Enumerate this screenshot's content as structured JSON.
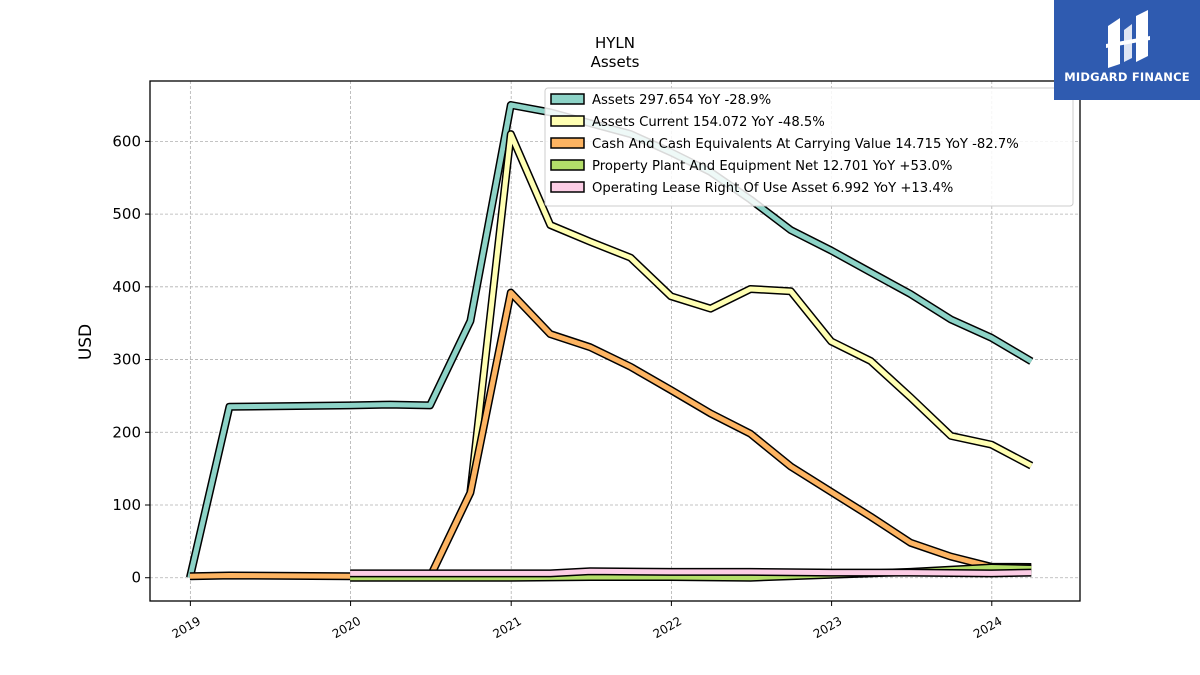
{
  "chart_data": {
    "type": "line",
    "title": "HYLN",
    "subtitle": "Assets",
    "ylabel": "USD",
    "xlabel": "",
    "xlim": [
      "2018-10-01",
      "2024-07-20"
    ],
    "ylim": [
      -32,
      683
    ],
    "x_ticks": [
      "2019",
      "2020",
      "2021",
      "2022",
      "2023",
      "2024"
    ],
    "y_ticks": [
      0,
      100,
      200,
      300,
      400,
      500,
      600
    ],
    "grid": true,
    "legend_position": "top-right",
    "series": [
      {
        "name": "Assets  297.654 YoY -28.9%",
        "color": "#8dd3c7",
        "points": [
          [
            "2018-12-31",
            0
          ],
          [
            "2019-03-31",
            235
          ],
          [
            "2019-12-31",
            237
          ],
          [
            "2020-03-31",
            238
          ],
          [
            "2020-06-30",
            237
          ],
          [
            "2020-09-30",
            353
          ],
          [
            "2020-12-31",
            650
          ],
          [
            "2021-03-31",
            640
          ],
          [
            "2021-06-30",
            625
          ],
          [
            "2021-09-30",
            610
          ],
          [
            "2021-12-31",
            585
          ],
          [
            "2022-03-31",
            558
          ],
          [
            "2022-06-30",
            520
          ],
          [
            "2022-09-30",
            478
          ],
          [
            "2022-12-31",
            450
          ],
          [
            "2023-03-31",
            420
          ],
          [
            "2023-06-30",
            390
          ],
          [
            "2023-09-30",
            355
          ],
          [
            "2023-12-31",
            330
          ],
          [
            "2024-03-31",
            297.654
          ]
        ]
      },
      {
        "name": "Assets Current  154.072 YoY -48.5%",
        "color": "#ffffb3",
        "points": [
          [
            "2020-09-30",
            118
          ],
          [
            "2020-12-31",
            610
          ],
          [
            "2021-03-31",
            485
          ],
          [
            "2021-06-30",
            462
          ],
          [
            "2021-09-30",
            440
          ],
          [
            "2021-12-31",
            387
          ],
          [
            "2022-03-31",
            370
          ],
          [
            "2022-06-30",
            397
          ],
          [
            "2022-09-30",
            394
          ],
          [
            "2022-12-31",
            325
          ],
          [
            "2023-03-31",
            298
          ],
          [
            "2023-06-30",
            248
          ],
          [
            "2023-09-30",
            195
          ],
          [
            "2023-12-31",
            183
          ],
          [
            "2024-03-31",
            154.072
          ]
        ]
      },
      {
        "name": "Cash And Cash Equivalents At Carrying Value  14.715 YoY -82.7%",
        "color": "#fdb462",
        "points": [
          [
            "2018-12-31",
            2
          ],
          [
            "2019-03-31",
            3
          ],
          [
            "2019-12-31",
            2
          ],
          [
            "2020-06-30",
            1
          ],
          [
            "2020-09-30",
            117
          ],
          [
            "2020-12-31",
            392
          ],
          [
            "2021-03-31",
            335
          ],
          [
            "2021-06-30",
            317
          ],
          [
            "2021-09-30",
            290
          ],
          [
            "2021-12-31",
            258
          ],
          [
            "2022-03-31",
            226
          ],
          [
            "2022-06-30",
            198
          ],
          [
            "2022-09-30",
            153
          ],
          [
            "2022-12-31",
            118
          ],
          [
            "2023-03-31",
            84
          ],
          [
            "2023-06-30",
            48
          ],
          [
            "2023-09-30",
            29
          ],
          [
            "2023-12-31",
            15
          ],
          [
            "2024-03-31",
            14.715
          ]
        ]
      },
      {
        "name": "Property Plant And Equipment Net  12.701 YoY +53.0%",
        "color": "#b3de69",
        "points": [
          [
            "2019-12-31",
            0
          ],
          [
            "2020-12-31",
            0
          ],
          [
            "2021-06-30",
            1
          ],
          [
            "2021-12-31",
            1
          ],
          [
            "2022-06-30",
            0
          ],
          [
            "2022-12-31",
            4
          ],
          [
            "2023-06-30",
            8
          ],
          [
            "2023-12-31",
            14
          ],
          [
            "2024-03-31",
            12.701
          ]
        ]
      },
      {
        "name": "Operating Lease Right Of Use Asset  6.992 YoY +13.4%",
        "color": "#fccde5",
        "points": [
          [
            "2019-12-31",
            6
          ],
          [
            "2020-12-31",
            6
          ],
          [
            "2021-03-31",
            6
          ],
          [
            "2021-06-30",
            9
          ],
          [
            "2021-12-31",
            8
          ],
          [
            "2022-06-30",
            8
          ],
          [
            "2022-12-31",
            7
          ],
          [
            "2023-06-30",
            7
          ],
          [
            "2023-12-31",
            6
          ],
          [
            "2024-03-31",
            6.992
          ]
        ]
      }
    ]
  },
  "logo": {
    "text": "MIDGARD FINANCE",
    "background": "#2f5bb0",
    "icon": "midgard-logo-icon"
  }
}
